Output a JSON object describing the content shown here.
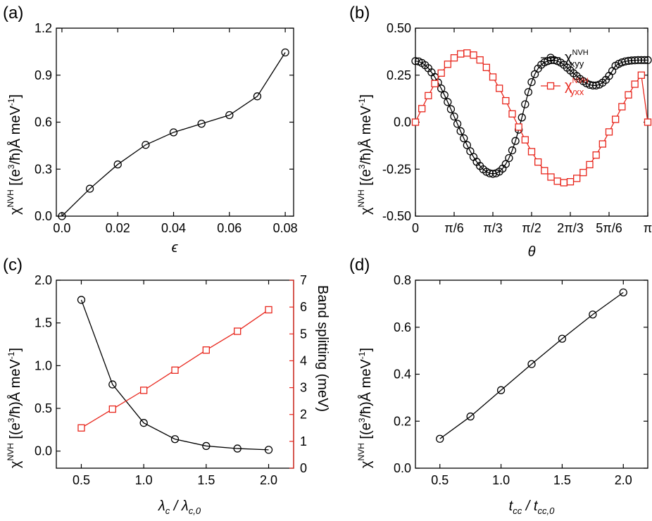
{
  "chart_data": [
    {
      "panel": "(a)",
      "type": "line",
      "x": [
        0.0,
        0.01,
        0.02,
        0.03,
        0.04,
        0.05,
        0.06,
        0.07,
        0.08
      ],
      "series": [
        {
          "values": [
            0.0,
            0.175,
            0.33,
            0.455,
            0.535,
            0.59,
            0.645,
            0.765,
            1.045
          ],
          "color": "#000000",
          "marker": "circle"
        }
      ],
      "xlim": [
        -0.002,
        0.083
      ],
      "ylim": [
        0.0,
        1.2
      ],
      "xticks": [
        0.0,
        0.02,
        0.04,
        0.06,
        0.08
      ],
      "xtick_labels": [
        "0.0",
        "0.02",
        "0.04",
        "0.06",
        "0.08"
      ],
      "yticks": [
        0.0,
        0.3,
        0.6,
        0.9,
        1.2
      ],
      "ytick_labels": [
        "0.0",
        "0.3",
        "0.6",
        "0.9",
        "1.2"
      ],
      "xlabel": "ϵ",
      "ylabel": "χNVH [(e³/ħ)Å meV⁻¹]"
    },
    {
      "panel": "(b)",
      "type": "line",
      "x_unit": "rad",
      "x_step": "π/36",
      "xlim": [
        0,
        3.14159
      ],
      "ylim": [
        -0.5,
        0.5
      ],
      "xticks": [
        0,
        0.5236,
        1.0472,
        1.5708,
        2.0944,
        2.618,
        3.1416
      ],
      "xtick_labels": [
        "0",
        "π/6",
        "π/3",
        "π/2",
        "2π/3",
        "5π/6",
        "π"
      ],
      "yticks": [
        -0.5,
        -0.25,
        0.0,
        0.25,
        0.5
      ],
      "ytick_labels": [
        "-0.50",
        "-0.25",
        "0.0",
        "0.25",
        "0.50"
      ],
      "xlabel": "θ",
      "ylabel": "χNVH [(e³/ħ)Å meV⁻¹]",
      "legend": "top-right",
      "series": [
        {
          "name": "χNVH xyy",
          "name_main": "χ",
          "name_sup": "NVH",
          "name_sub": "xyy",
          "color": "#000000",
          "marker": "circle",
          "values": [
            0.325,
            0.323,
            0.315,
            0.303,
            0.287,
            0.265,
            0.24,
            0.211,
            0.179,
            0.144,
            0.107,
            0.069,
            0.03,
            -0.009,
            -0.048,
            -0.086,
            -0.122,
            -0.155,
            -0.185,
            -0.211,
            -0.233,
            -0.251,
            -0.264,
            -0.272,
            -0.275,
            -0.272,
            -0.263,
            -0.247,
            -0.223,
            -0.191,
            -0.15,
            -0.1,
            -0.04,
            0.025,
            0.095,
            0.16,
            0.213,
            0.255,
            0.285,
            0.305,
            0.318,
            0.325,
            0.33,
            0.33,
            0.325,
            0.317,
            0.305,
            0.29,
            0.275,
            0.26,
            0.245,
            0.23,
            0.218,
            0.207,
            0.199,
            0.195,
            0.195,
            0.2,
            0.21,
            0.225,
            0.246,
            0.272,
            0.3,
            0.31,
            0.318,
            0.323,
            0.326,
            0.328,
            0.329,
            0.33,
            0.33,
            0.33,
            0.33
          ]
        },
        {
          "name": "χNVH yxx",
          "name_main": "χ",
          "name_sup": "NVH",
          "name_sub": "yxx",
          "color": "#e8261c",
          "marker": "square",
          "values": [
            0.0,
            0.072,
            0.141,
            0.205,
            0.261,
            0.308,
            0.342,
            0.363,
            0.368,
            0.357,
            0.331,
            0.291,
            0.24,
            0.18,
            0.114,
            0.044,
            -0.026,
            -0.094,
            -0.157,
            -0.212,
            -0.258,
            -0.292,
            -0.314,
            -0.322,
            -0.317,
            -0.299,
            -0.268,
            -0.226,
            -0.175,
            -0.116,
            -0.052,
            0.015,
            0.082,
            0.145,
            0.202,
            0.25,
            0.0
          ]
        }
      ]
    },
    {
      "panel": "(c)",
      "type": "line",
      "x": [
        0.5,
        0.75,
        1.0,
        1.25,
        1.5,
        1.75,
        2.0
      ],
      "xlim": [
        0.3,
        2.2
      ],
      "ylim": [
        -0.2,
        2.0
      ],
      "ylim_right": [
        0,
        7
      ],
      "xticks": [
        0.5,
        1.0,
        1.5,
        2.0
      ],
      "xtick_labels": [
        "0.5",
        "1.0",
        "1.5",
        "2.0"
      ],
      "yticks": [
        0.0,
        0.5,
        1.0,
        1.5,
        2.0
      ],
      "ytick_labels": [
        "0.0",
        "0.5",
        "1.0",
        "1.5",
        "2.0"
      ],
      "yticks_right": [
        0,
        1,
        2,
        3,
        4,
        5,
        6,
        7
      ],
      "ytick_labels_right": [
        "0",
        "1",
        "2",
        "3",
        "4",
        "5",
        "6",
        "7"
      ],
      "xlabel": "λc / λc,0",
      "ylabel": "χNVH [(e³/ħ)Å meV⁻¹]",
      "ylabel_right": "Band splitting (meV)",
      "series": [
        {
          "axis": "left",
          "color": "#000000",
          "marker": "circle",
          "values": [
            1.77,
            0.78,
            0.33,
            0.14,
            0.06,
            0.03,
            0.015
          ]
        },
        {
          "axis": "right",
          "color": "#e8261c",
          "marker": "square",
          "values": [
            1.5,
            2.2,
            2.9,
            3.65,
            4.4,
            5.1,
            5.9
          ]
        }
      ]
    },
    {
      "panel": "(d)",
      "type": "line",
      "x": [
        0.5,
        0.75,
        1.0,
        1.25,
        1.5,
        1.75,
        2.0
      ],
      "xlim": [
        0.3,
        2.2
      ],
      "ylim": [
        0.0,
        0.8
      ],
      "xticks": [
        0.5,
        1.0,
        1.5,
        2.0
      ],
      "xtick_labels": [
        "0.5",
        "1.0",
        "1.5",
        "2.0"
      ],
      "yticks": [
        0.0,
        0.2,
        0.4,
        0.6,
        0.8
      ],
      "ytick_labels": [
        "0.0",
        "0.2",
        "0.4",
        "0.6",
        "0.8"
      ],
      "xlabel": "tcc / tcc,0",
      "ylabel": "χNVH [(e³/ħ)Å meV⁻¹]",
      "series": [
        {
          "color": "#000000",
          "marker": "circle",
          "values": [
            0.125,
            0.22,
            0.332,
            0.443,
            0.551,
            0.654,
            0.748
          ]
        }
      ]
    }
  ]
}
